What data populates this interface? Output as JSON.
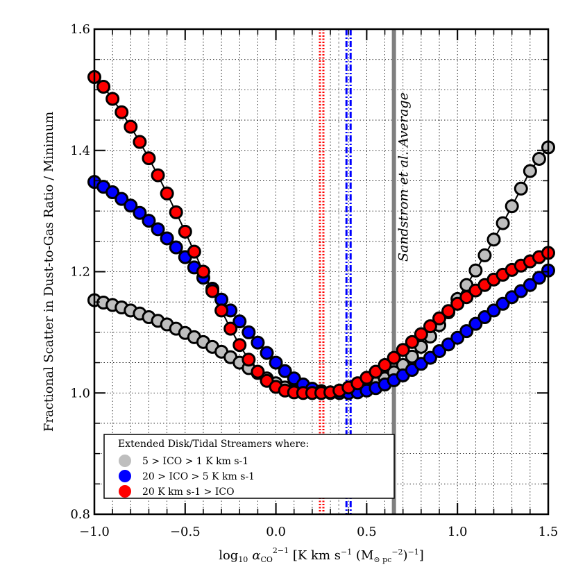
{
  "chart_data": {
    "type": "scatter",
    "title": "",
    "xlabel": "log10 αCO 2-1 [K km s-1 (M⊙ pc-2)-1]",
    "ylabel": "Fractional Scatter in Dust-to-Gas Ratio / Minimum",
    "xlim": [
      -1.0,
      1.5
    ],
    "ylim": [
      0.8,
      1.6
    ],
    "x_ticks": [
      -1.0,
      -0.5,
      0.0,
      0.5,
      1.0,
      1.5
    ],
    "x_tick_labels": [
      "−1.0",
      "−0.5",
      "0.0",
      "0.5",
      "1.0",
      "1.5"
    ],
    "y_ticks": [
      0.8,
      1.0,
      1.2,
      1.4,
      1.6
    ],
    "y_tick_labels": [
      "0.8",
      "1.0",
      "1.2",
      "1.4",
      "1.6"
    ],
    "grid": true,
    "legend_position": "bottom-left",
    "legend_title": "Extended Disk/Tidal Streamers where:",
    "series": [
      {
        "name": "5 > ICO > 1 K km s-1",
        "color": "#bebebe",
        "min_x": 0.35,
        "x": [
          -1.0,
          -0.95,
          -0.9,
          -0.85,
          -0.8,
          -0.75,
          -0.7,
          -0.65,
          -0.6,
          -0.55,
          -0.5,
          -0.45,
          -0.4,
          -0.35,
          -0.3,
          -0.25,
          -0.2,
          -0.15,
          -0.1,
          -0.05,
          0.0,
          0.05,
          0.1,
          0.15,
          0.2,
          0.25,
          0.3,
          0.35,
          0.4,
          0.45,
          0.5,
          0.55,
          0.6,
          0.65,
          0.7,
          0.75,
          0.8,
          0.85,
          0.9,
          0.95,
          1.0,
          1.05,
          1.1,
          1.15,
          1.2,
          1.25,
          1.3,
          1.35,
          1.4,
          1.45,
          1.5
        ],
        "y": [
          1.153,
          1.149,
          1.145,
          1.141,
          1.136,
          1.131,
          1.125,
          1.119,
          1.113,
          1.106,
          1.099,
          1.092,
          1.084,
          1.076,
          1.068,
          1.059,
          1.05,
          1.041,
          1.033,
          1.024,
          1.016,
          1.009,
          1.004,
          1.001,
          1.0,
          1.0,
          1.0,
          1.0,
          1.001,
          1.004,
          1.009,
          1.016,
          1.024,
          1.034,
          1.046,
          1.06,
          1.076,
          1.093,
          1.112,
          1.133,
          1.155,
          1.178,
          1.202,
          1.227,
          1.253,
          1.28,
          1.308,
          1.337,
          1.366,
          1.386,
          1.405
        ]
      },
      {
        "name": "20 > ICO > 5 K km s-1",
        "color": "#0000ff",
        "min_x": 0.4,
        "x": [
          -1.0,
          -0.95,
          -0.9,
          -0.85,
          -0.8,
          -0.75,
          -0.7,
          -0.65,
          -0.6,
          -0.55,
          -0.5,
          -0.45,
          -0.4,
          -0.35,
          -0.3,
          -0.25,
          -0.2,
          -0.15,
          -0.1,
          -0.05,
          0.0,
          0.05,
          0.1,
          0.15,
          0.2,
          0.25,
          0.3,
          0.35,
          0.4,
          0.45,
          0.5,
          0.55,
          0.6,
          0.65,
          0.7,
          0.75,
          0.8,
          0.85,
          0.9,
          0.95,
          1.0,
          1.05,
          1.1,
          1.15,
          1.2,
          1.25,
          1.3,
          1.35,
          1.4,
          1.45,
          1.5
        ],
        "y": [
          1.348,
          1.34,
          1.331,
          1.32,
          1.309,
          1.297,
          1.284,
          1.27,
          1.255,
          1.24,
          1.224,
          1.207,
          1.19,
          1.172,
          1.154,
          1.136,
          1.118,
          1.1,
          1.083,
          1.066,
          1.05,
          1.036,
          1.024,
          1.014,
          1.007,
          1.003,
          1.001,
          1.0,
          1.0,
          1.001,
          1.004,
          1.008,
          1.014,
          1.021,
          1.029,
          1.038,
          1.048,
          1.058,
          1.069,
          1.08,
          1.091,
          1.102,
          1.114,
          1.125,
          1.136,
          1.147,
          1.158,
          1.168,
          1.178,
          1.19,
          1.202
        ]
      },
      {
        "name": "20 K km s-1 > ICO",
        "color": "#ff0000",
        "min_x": 0.25,
        "x": [
          -1.0,
          -0.95,
          -0.9,
          -0.85,
          -0.8,
          -0.75,
          -0.7,
          -0.65,
          -0.6,
          -0.55,
          -0.5,
          -0.45,
          -0.4,
          -0.35,
          -0.3,
          -0.25,
          -0.2,
          -0.15,
          -0.1,
          -0.05,
          0.0,
          0.05,
          0.1,
          0.15,
          0.2,
          0.25,
          0.3,
          0.35,
          0.4,
          0.45,
          0.5,
          0.55,
          0.6,
          0.65,
          0.7,
          0.75,
          0.8,
          0.85,
          0.9,
          0.95,
          1.0,
          1.05,
          1.1,
          1.15,
          1.2,
          1.25,
          1.3,
          1.35,
          1.4,
          1.45,
          1.5
        ],
        "y": [
          1.521,
          1.505,
          1.485,
          1.463,
          1.439,
          1.414,
          1.387,
          1.359,
          1.329,
          1.298,
          1.266,
          1.233,
          1.2,
          1.168,
          1.136,
          1.106,
          1.079,
          1.055,
          1.035,
          1.02,
          1.01,
          1.004,
          1.001,
          1.0,
          1.0,
          1.0,
          1.001,
          1.004,
          1.009,
          1.016,
          1.025,
          1.035,
          1.046,
          1.058,
          1.071,
          1.084,
          1.097,
          1.11,
          1.123,
          1.135,
          1.147,
          1.158,
          1.169,
          1.178,
          1.187,
          1.195,
          1.203,
          1.21,
          1.217,
          1.224,
          1.231
        ]
      }
    ],
    "annotations": [
      {
        "text": "Sandstrom et al. Average",
        "x": 0.65,
        "color": "#7f7f7f",
        "style": "solid"
      }
    ]
  }
}
